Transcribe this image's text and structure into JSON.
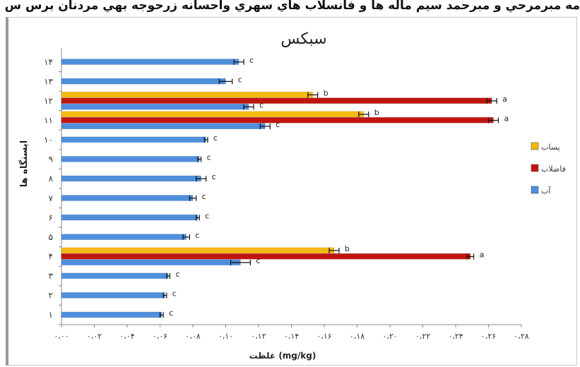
{
  "page": {
    "top_caption": "مه مبرمرحي و مبرحمد سيم ماله ها و فانسلاب هاي سهري واحسانه زرحوجه بهي مردنان برس س سهر همدان سرالعاق ودانهاند در م"
  },
  "chart_data": {
    "type": "bar",
    "orientation": "horizontal",
    "title": "سبکس",
    "xlabel": "غلظت (mg/kg)",
    "ylabel": "ایستگاه ها",
    "xlim": [
      0,
      0.28
    ],
    "x_ticks": [
      "۰،۰۰",
      "۰،۰۲",
      "۰،۰۴",
      "۰،۰۶",
      "۰،۰۸",
      "۰،۱۰",
      "۰،۱۲",
      "۰،۱۴",
      "۰،۱۶",
      "۰،۱۸",
      "۰،۲۰",
      "۰،۲۲",
      "۰،۲۴",
      "۰،۲۶",
      "۰،۲۸"
    ],
    "categories": [
      "۱",
      "۲",
      "۳",
      "۴",
      "۵",
      "۶",
      "۷",
      "۸",
      "۹",
      "۱۰",
      "۱۱",
      "۱۲",
      "۱۳",
      "۱۴"
    ],
    "grid": false,
    "legend_position": "right",
    "series": [
      {
        "name": "پساب",
        "color": "#f5b90f",
        "values": [
          null,
          null,
          null,
          0.166,
          null,
          null,
          null,
          null,
          null,
          null,
          0.184,
          0.153,
          null,
          null
        ],
        "errors": [
          null,
          null,
          null,
          0.003,
          null,
          null,
          null,
          null,
          null,
          null,
          0.003,
          0.003,
          null,
          null
        ],
        "labels": [
          "",
          "",
          "",
          "b",
          "",
          "",
          "",
          "",
          "",
          "",
          "b",
          "b",
          "",
          ""
        ]
      },
      {
        "name": "فاضلاب",
        "color": "#c0150f",
        "values": [
          null,
          null,
          null,
          0.249,
          null,
          null,
          null,
          null,
          null,
          null,
          0.263,
          0.262,
          null,
          null
        ],
        "errors": [
          null,
          null,
          null,
          0.002,
          null,
          null,
          null,
          null,
          null,
          null,
          0.003,
          0.003,
          null,
          null
        ],
        "labels": [
          "",
          "",
          "",
          "a",
          "",
          "",
          "",
          "",
          "",
          "",
          "a",
          "a",
          "",
          ""
        ]
      },
      {
        "name": "آب",
        "color": "#4f8fdc",
        "values": [
          0.061,
          0.063,
          0.065,
          0.109,
          0.076,
          0.083,
          0.08,
          0.085,
          0.084,
          0.088,
          0.124,
          0.114,
          0.1,
          0.108
        ],
        "errors": [
          0.001,
          0.001,
          0.001,
          0.006,
          0.002,
          0.001,
          0.002,
          0.003,
          0.001,
          0.001,
          0.003,
          0.003,
          0.004,
          0.003
        ],
        "labels": [
          "c",
          "c",
          "c",
          "c",
          "c",
          "c",
          "c",
          "c",
          "c",
          "c",
          "c",
          "c",
          "c",
          "c"
        ]
      }
    ]
  }
}
